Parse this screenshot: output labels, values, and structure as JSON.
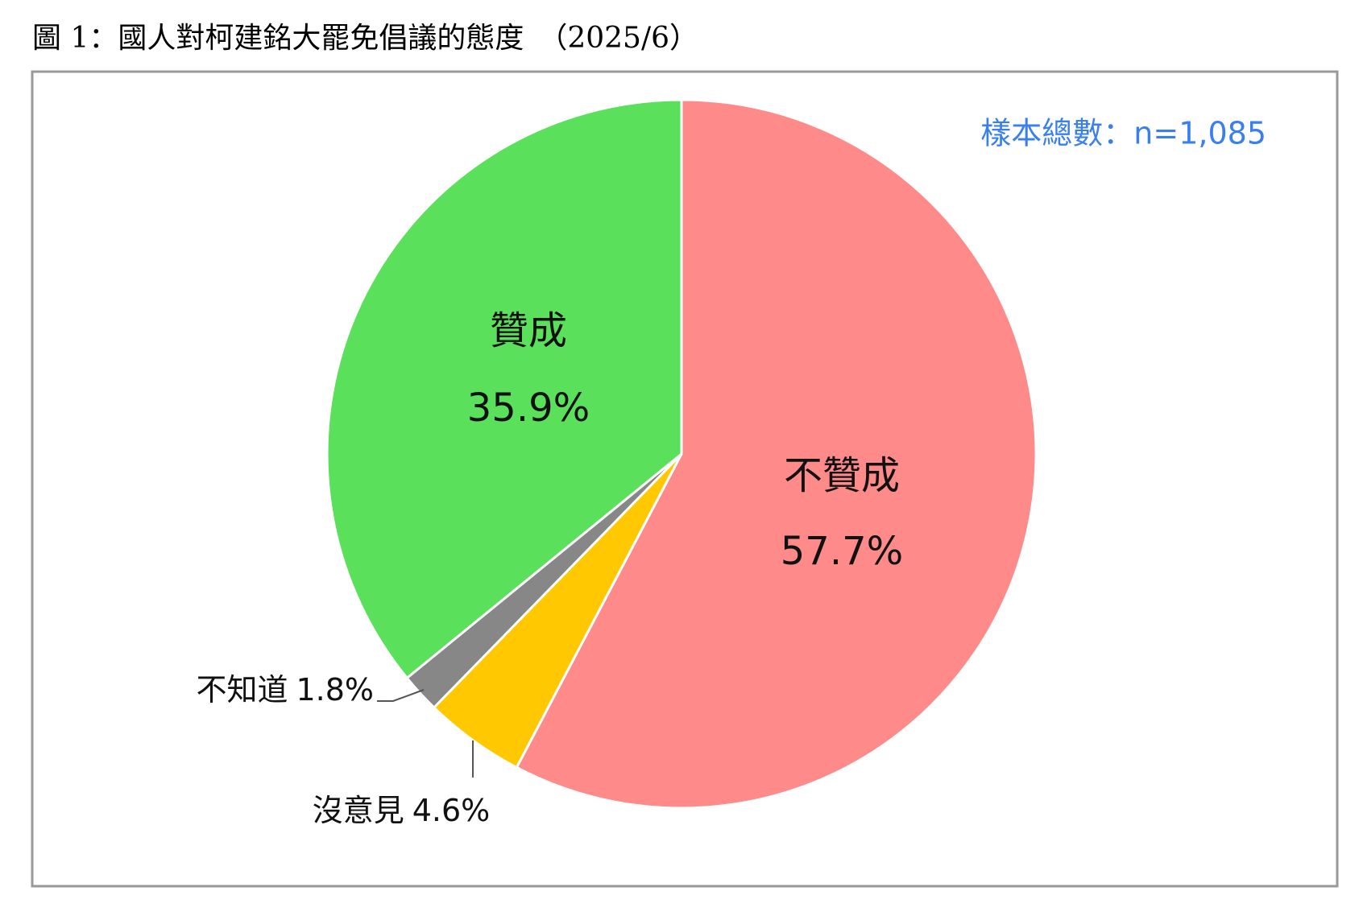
{
  "chart_data": {
    "type": "pie",
    "title": "圖 1：國人對柯建銘大罷免倡議的態度　（2025/6）",
    "note": "樣本總數：n=1,085",
    "categories": [
      "不贊成",
      "沒意見",
      "不知道",
      "贊成"
    ],
    "values": [
      57.7,
      4.6,
      1.8,
      35.9
    ],
    "value_labels": [
      "57.7%",
      "4.6%",
      "1.8%",
      "35.9%"
    ],
    "colors": [
      "#ff8a8a",
      "#ffc800",
      "#878787",
      "#5be05b"
    ]
  }
}
